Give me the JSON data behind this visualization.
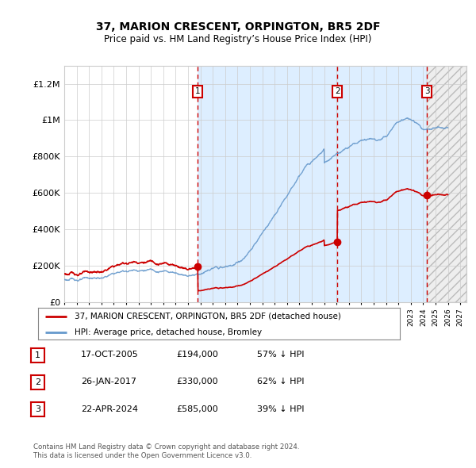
{
  "title": "37, MARION CRESCENT, ORPINGTON, BR5 2DF",
  "subtitle": "Price paid vs. HM Land Registry’s House Price Index (HPI)",
  "ylim": [
    0,
    1300000
  ],
  "xlim_start": 1995.0,
  "xlim_end": 2027.5,
  "yticks": [
    0,
    200000,
    400000,
    600000,
    800000,
    1000000,
    1200000
  ],
  "ytick_labels": [
    "£0",
    "£200K",
    "£400K",
    "£600K",
    "£800K",
    "£1M",
    "£1.2M"
  ],
  "sale_dates": [
    2005.79,
    2017.07,
    2024.31
  ],
  "sale_prices": [
    194000,
    330000,
    585000
  ],
  "sale_labels": [
    "1",
    "2",
    "3"
  ],
  "vline_color": "#cc0000",
  "hpi_color": "#6699cc",
  "sale_color": "#cc0000",
  "dot_color": "#cc0000",
  "legend_entries": [
    "37, MARION CRESCENT, ORPINGTON, BR5 2DF (detached house)",
    "HPI: Average price, detached house, Bromley"
  ],
  "table_rows": [
    [
      "1",
      "17-OCT-2005",
      "£194,000",
      "57% ↓ HPI"
    ],
    [
      "2",
      "26-JAN-2017",
      "£330,000",
      "62% ↓ HPI"
    ],
    [
      "3",
      "22-APR-2024",
      "£585,000",
      "39% ↓ HPI"
    ]
  ],
  "footer": "Contains HM Land Registry data © Crown copyright and database right 2024.\nThis data is licensed under the Open Government Licence v3.0.",
  "background_color": "#ffffff"
}
